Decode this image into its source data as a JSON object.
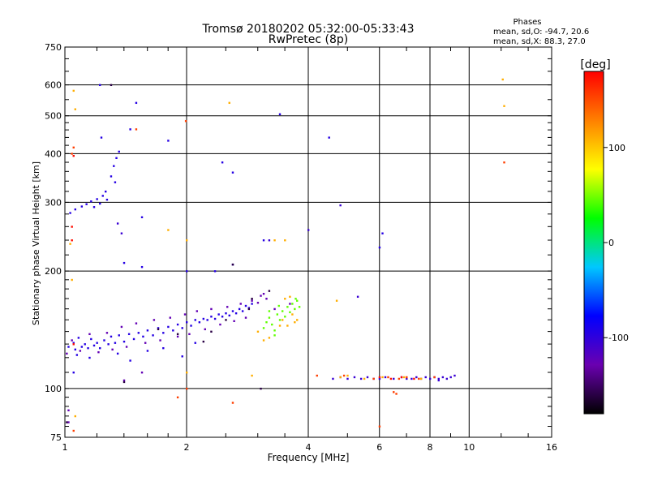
{
  "header": {
    "title_line1": "Tromsø 20180202 05:32:00-05:33:43",
    "title_line2": "RwPretec (8p)",
    "phase_title": "Phases",
    "phase_o": "mean, sd,O: -94.7, 20.6",
    "phase_x": "mean, sd,X:  88.3, 27.0"
  },
  "chart_data": {
    "type": "scatter",
    "xlabel": "Frequency [MHz]",
    "ylabel": "Stationary phase Virtual Height [km]",
    "xscale": "log",
    "yscale": "log",
    "xlim": [
      1,
      16
    ],
    "ylim": [
      75,
      750
    ],
    "x_ticks": [
      1,
      2,
      4,
      6,
      8,
      10,
      16
    ],
    "x_grid": [
      2,
      4,
      6,
      8,
      10
    ],
    "y_ticks": [
      75,
      100,
      200,
      300,
      400,
      500,
      600,
      750
    ],
    "y_grid": [
      100,
      200,
      300,
      400,
      500,
      600
    ],
    "colorbar": {
      "label": "[deg]",
      "range": [
        -180,
        180
      ],
      "ticks": [
        100,
        0,
        -100
      ],
      "colors": [
        "#000000",
        "#6a00b0",
        "#0000ff",
        "#00c8ff",
        "#00ff00",
        "#ffff00",
        "#ff8000",
        "#ff0000"
      ]
    },
    "series": [
      {
        "color_phase": -95,
        "points": [
          [
            1.02,
            128
          ],
          [
            1.05,
            131
          ],
          [
            1.06,
            126
          ],
          [
            1.08,
            135
          ],
          [
            1.1,
            128
          ],
          [
            1.12,
            130
          ],
          [
            1.14,
            127
          ],
          [
            1.16,
            134
          ],
          [
            1.18,
            129
          ],
          [
            1.2,
            131
          ],
          [
            1.22,
            127
          ],
          [
            1.25,
            133
          ],
          [
            1.28,
            130
          ],
          [
            1.3,
            136
          ],
          [
            1.33,
            131
          ],
          [
            1.36,
            137
          ],
          [
            1.4,
            132
          ],
          [
            1.44,
            138
          ],
          [
            1.48,
            134
          ],
          [
            1.52,
            139
          ],
          [
            1.56,
            136
          ],
          [
            1.6,
            141
          ],
          [
            1.65,
            137
          ],
          [
            1.7,
            143
          ],
          [
            1.75,
            139
          ],
          [
            1.8,
            144
          ],
          [
            1.85,
            141
          ],
          [
            1.9,
            146
          ],
          [
            1.95,
            143
          ],
          [
            2.0,
            148
          ],
          [
            2.05,
            145
          ],
          [
            2.1,
            150
          ],
          [
            2.15,
            148
          ],
          [
            2.2,
            151
          ],
          [
            2.25,
            150
          ],
          [
            2.3,
            153
          ],
          [
            2.35,
            151
          ],
          [
            2.4,
            155
          ],
          [
            2.45,
            153
          ],
          [
            2.5,
            156
          ],
          [
            2.55,
            154
          ],
          [
            2.6,
            158
          ],
          [
            2.65,
            156
          ],
          [
            2.7,
            160
          ],
          [
            2.75,
            158
          ],
          [
            2.8,
            163
          ],
          [
            2.85,
            161
          ],
          [
            2.9,
            165
          ],
          [
            1.03,
            282
          ],
          [
            1.06,
            288
          ],
          [
            1.1,
            293
          ],
          [
            1.13,
            297
          ],
          [
            1.16,
            302
          ],
          [
            1.18,
            292
          ],
          [
            1.2,
            306
          ],
          [
            1.22,
            298
          ],
          [
            1.24,
            312
          ],
          [
            1.26,
            320
          ],
          [
            1.27,
            305
          ],
          [
            1.3,
            350
          ],
          [
            1.32,
            372
          ],
          [
            1.34,
            390
          ],
          [
            1.36,
            405
          ],
          [
            1.33,
            338
          ],
          [
            1.05,
            110
          ],
          [
            1.07,
            122
          ],
          [
            1.15,
            120
          ],
          [
            1.35,
            123
          ],
          [
            1.45,
            118
          ],
          [
            1.6,
            125
          ],
          [
            1.75,
            127
          ],
          [
            1.95,
            121
          ],
          [
            2.1,
            131
          ],
          [
            1.5,
            540
          ],
          [
            1.22,
            600
          ],
          [
            1.23,
            440
          ],
          [
            1.45,
            462
          ],
          [
            1.8,
            432
          ],
          [
            2.45,
            380
          ],
          [
            2.6,
            358
          ],
          [
            3.4,
            505
          ],
          [
            4.5,
            440
          ],
          [
            6.1,
            250
          ],
          [
            6.0,
            230
          ],
          [
            1.55,
            275
          ],
          [
            1.4,
            210
          ],
          [
            1.55,
            205
          ],
          [
            2.0,
            200
          ],
          [
            2.35,
            200
          ],
          [
            2.6,
            208
          ],
          [
            3.1,
            240
          ]
        ]
      },
      {
        "color_phase": -125,
        "points": [
          [
            1.01,
            123
          ],
          [
            1.04,
            133
          ],
          [
            1.09,
            125
          ],
          [
            1.15,
            138
          ],
          [
            1.21,
            124
          ],
          [
            1.27,
            139
          ],
          [
            1.31,
            126
          ],
          [
            1.38,
            144
          ],
          [
            1.42,
            128
          ],
          [
            1.5,
            147
          ],
          [
            1.58,
            131
          ],
          [
            1.66,
            150
          ],
          [
            1.72,
            133
          ],
          [
            1.82,
            152
          ],
          [
            1.9,
            136
          ],
          [
            1.98,
            155
          ],
          [
            2.03,
            138
          ],
          [
            2.12,
            158
          ],
          [
            2.22,
            142
          ],
          [
            2.3,
            160
          ],
          [
            2.42,
            146
          ],
          [
            2.52,
            162
          ],
          [
            2.62,
            149
          ],
          [
            2.72,
            165
          ],
          [
            2.8,
            152
          ],
          [
            2.9,
            168
          ],
          [
            3.0,
            166
          ],
          [
            3.05,
            173
          ],
          [
            3.1,
            175
          ],
          [
            3.15,
            170
          ],
          [
            1.02,
            88
          ],
          [
            1.02,
            82
          ],
          [
            1.4,
            105
          ],
          [
            1.55,
            110
          ],
          [
            3.6,
            165
          ],
          [
            3.3,
            160
          ]
        ]
      },
      {
        "color_phase": -105,
        "points": [
          [
            4.6,
            106
          ],
          [
            4.8,
            107
          ],
          [
            5.0,
            106
          ],
          [
            5.2,
            107
          ],
          [
            5.4,
            106
          ],
          [
            5.6,
            107
          ],
          [
            5.8,
            106
          ],
          [
            6.0,
            106
          ],
          [
            6.2,
            107
          ],
          [
            6.5,
            106
          ],
          [
            6.8,
            107
          ],
          [
            7.0,
            106
          ],
          [
            7.2,
            106
          ],
          [
            7.4,
            107
          ],
          [
            7.6,
            106
          ],
          [
            7.8,
            107
          ],
          [
            8.0,
            106
          ],
          [
            8.2,
            107
          ],
          [
            8.4,
            106
          ],
          [
            8.6,
            107
          ],
          [
            8.8,
            106
          ],
          [
            9.0,
            107
          ],
          [
            9.2,
            108
          ],
          [
            3.2,
            240
          ],
          [
            4.8,
            295
          ],
          [
            4.0,
            255
          ],
          [
            1.35,
            265
          ],
          [
            1.38,
            250
          ],
          [
            5.3,
            172
          ],
          [
            8.4,
            105
          ]
        ]
      },
      {
        "color_phase": 45,
        "points": [
          [
            3.1,
            143
          ],
          [
            3.15,
            148
          ],
          [
            3.2,
            152
          ],
          [
            3.25,
            146
          ],
          [
            3.3,
            141
          ],
          [
            3.35,
            155
          ],
          [
            3.4,
            150
          ],
          [
            3.45,
            158
          ],
          [
            3.5,
            153
          ],
          [
            3.55,
            162
          ],
          [
            3.6,
            157
          ],
          [
            3.65,
            165
          ],
          [
            3.7,
            160
          ],
          [
            3.72,
            170
          ],
          [
            3.75,
            168
          ],
          [
            3.8,
            162
          ],
          [
            3.2,
            158
          ],
          [
            3.3,
            137
          ],
          [
            3.38,
            163
          ]
        ]
      },
      {
        "color_phase": 110,
        "points": [
          [
            3.45,
            150
          ],
          [
            3.55,
            145
          ],
          [
            3.65,
            155
          ],
          [
            3.75,
            150
          ],
          [
            3.5,
            170
          ],
          [
            3.6,
            172
          ],
          [
            3.7,
            148
          ],
          [
            3.4,
            145
          ],
          [
            3.0,
            140
          ],
          [
            3.1,
            133
          ],
          [
            3.2,
            135
          ],
          [
            4.8,
            107
          ],
          [
            5.0,
            108
          ],
          [
            5.5,
            106
          ],
          [
            6.1,
            107
          ],
          [
            6.9,
            107
          ],
          [
            7.6,
            106
          ],
          [
            2.0,
            240
          ],
          [
            3.5,
            240
          ],
          [
            2.55,
            540
          ],
          [
            1.03,
            235
          ],
          [
            1.04,
            190
          ],
          [
            1.06,
            85
          ],
          [
            1.05,
            580
          ],
          [
            1.06,
            520
          ],
          [
            4.7,
            168
          ],
          [
            2.9,
            108
          ],
          [
            2.0,
            110
          ],
          [
            12.2,
            530
          ],
          [
            12.1,
            620
          ],
          [
            1.8,
            255
          ],
          [
            3.3,
            240
          ]
        ]
      },
      {
        "color_phase": 155,
        "points": [
          [
            1.04,
            400
          ],
          [
            1.05,
            415
          ],
          [
            1.5,
            462
          ],
          [
            1.99,
            485
          ],
          [
            4.2,
            108
          ],
          [
            4.9,
            108
          ],
          [
            5.8,
            106
          ],
          [
            6.3,
            107
          ],
          [
            6.7,
            106
          ],
          [
            7.0,
            107
          ],
          [
            7.5,
            106
          ],
          [
            8.2,
            107
          ],
          [
            12.2,
            380
          ],
          [
            6.5,
            98
          ],
          [
            6.6,
            97
          ],
          [
            6.0,
            80
          ],
          [
            1.05,
            78
          ],
          [
            2.6,
            92
          ],
          [
            1.9,
            95
          ],
          [
            2.0,
            100
          ]
        ]
      },
      {
        "color_phase": 175,
        "points": [
          [
            1.05,
            395
          ],
          [
            6.0,
            107
          ],
          [
            6.4,
            106
          ],
          [
            6.8,
            107
          ],
          [
            7.3,
            106
          ],
          [
            1.05,
            130
          ],
          [
            1.04,
            260
          ],
          [
            1.04,
            240
          ]
        ]
      },
      {
        "color_phase": -160,
        "points": [
          [
            1.01,
            82
          ],
          [
            1.4,
            104
          ],
          [
            3.05,
            100
          ],
          [
            2.3,
            140
          ],
          [
            2.5,
            150
          ],
          [
            2.2,
            132
          ],
          [
            1.9,
            138
          ],
          [
            1.7,
            142
          ],
          [
            2.9,
            170
          ],
          [
            2.85,
            160
          ],
          [
            3.2,
            178
          ],
          [
            1.3,
            600
          ],
          [
            2.6,
            208
          ]
        ]
      }
    ]
  }
}
